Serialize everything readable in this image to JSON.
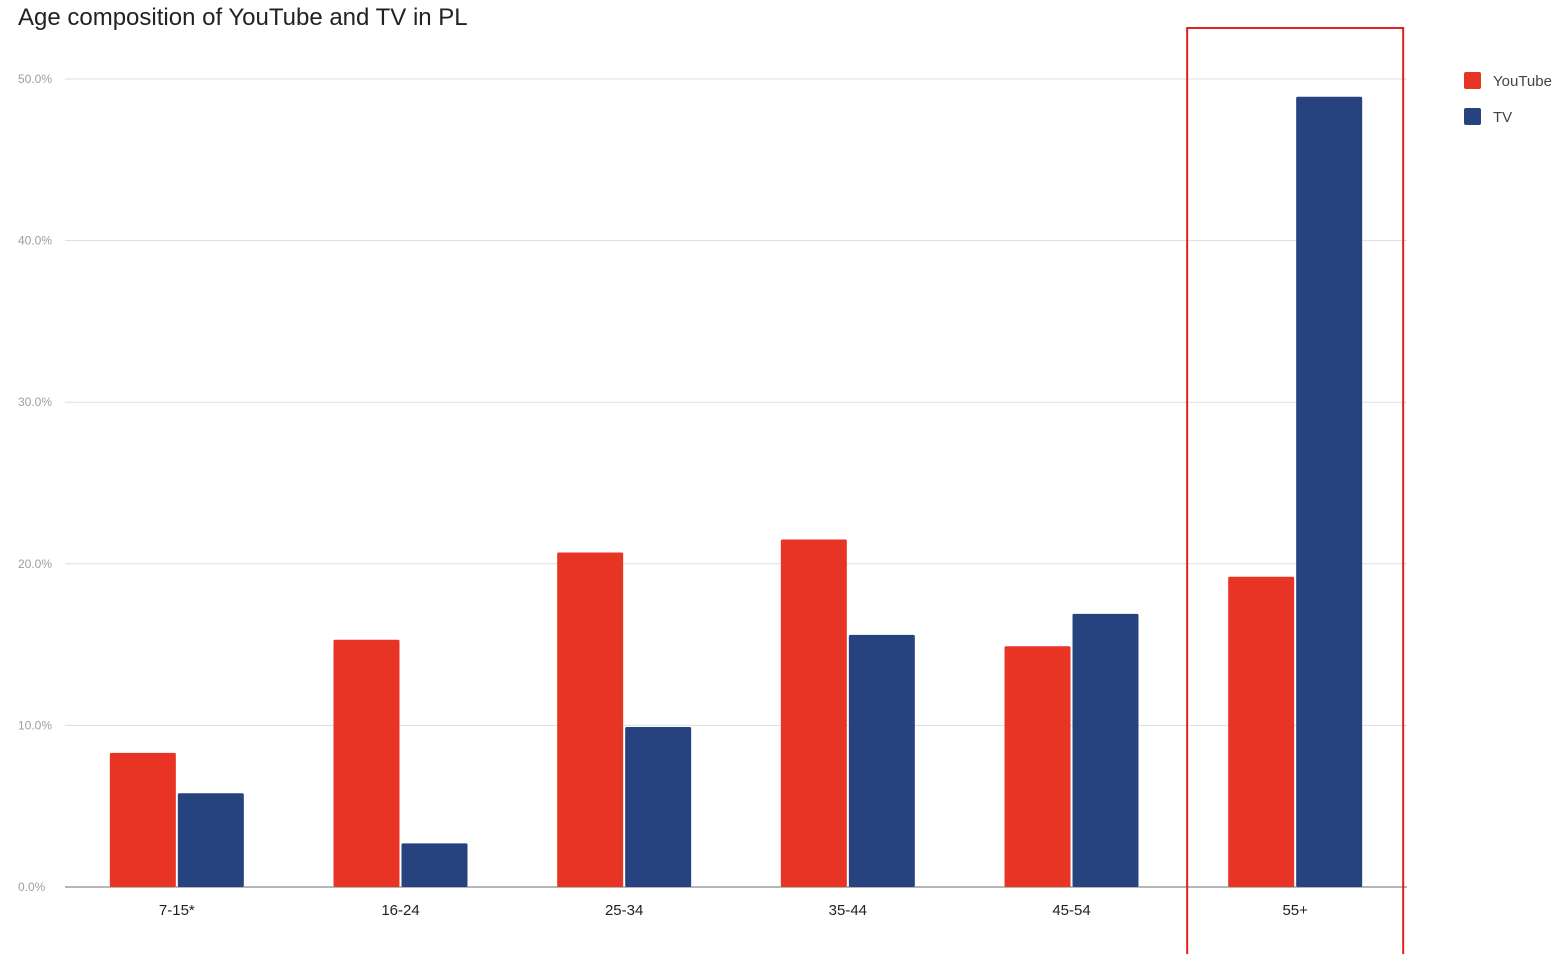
{
  "chart_data": {
    "type": "bar",
    "title": "Age composition of YouTube and TV in PL",
    "xlabel": "",
    "ylabel": "",
    "categories": [
      "7-15*",
      "16-24",
      "25-34",
      "35-44",
      "45-54",
      "55+"
    ],
    "series": [
      {
        "name": "YouTube",
        "color": "#e83424",
        "values": [
          8.3,
          15.3,
          20.7,
          21.5,
          14.9,
          19.2
        ]
      },
      {
        "name": "TV",
        "color": "#26437f",
        "values": [
          5.8,
          2.7,
          9.9,
          15.6,
          16.9,
          48.9
        ]
      }
    ],
    "ylim": [
      0,
      50
    ],
    "yticks": [
      "0.0%",
      "10.0%",
      "20.0%",
      "30.0%",
      "40.0%",
      "50.0%"
    ],
    "grid": true,
    "legend_position": "top-right",
    "highlight": {
      "category": "55+",
      "color": "#e0201c"
    }
  }
}
